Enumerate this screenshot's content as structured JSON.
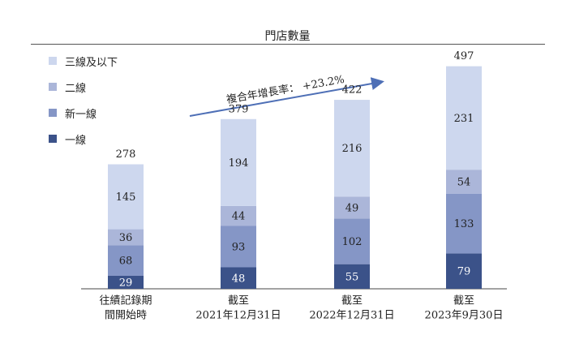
{
  "chart_data": {
    "type": "bar",
    "stacked": true,
    "title": "門店數量",
    "categories": [
      [
        "往績記錄期",
        "間開始時"
      ],
      [
        "截至",
        "2021年12月31日"
      ],
      [
        "截至",
        "2022年12月31日"
      ],
      [
        "截至",
        "2023年9月30日"
      ]
    ],
    "series": [
      {
        "name": "一線",
        "color": "#3b5289",
        "values": [
          29,
          48,
          55,
          79
        ]
      },
      {
        "name": "新一線",
        "color": "#8596c6",
        "values": [
          68,
          93,
          102,
          133
        ]
      },
      {
        "name": "二線",
        "color": "#abb6d9",
        "values": [
          36,
          44,
          49,
          54
        ]
      },
      {
        "name": "三線及以下",
        "color": "#cdd7ee",
        "values": [
          145,
          194,
          216,
          231
        ]
      }
    ],
    "totals": [
      278,
      379,
      422,
      497
    ],
    "legend_order": [
      "三線及以下",
      "二線",
      "新一線",
      "一線"
    ],
    "legend_position": "top-left",
    "annotation": "複合年增長率： +23.2%",
    "grid": false,
    "ylim": [
      0,
      520
    ]
  }
}
